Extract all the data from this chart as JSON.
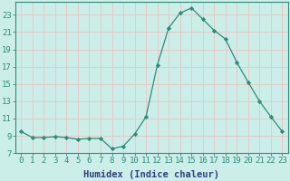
{
  "x": [
    0,
    1,
    2,
    3,
    4,
    5,
    6,
    7,
    8,
    9,
    10,
    11,
    12,
    13,
    14,
    15,
    16,
    17,
    18,
    19,
    20,
    21,
    22,
    23
  ],
  "y": [
    9.5,
    8.8,
    8.8,
    8.9,
    8.8,
    8.6,
    8.7,
    8.7,
    7.5,
    7.8,
    9.2,
    11.2,
    17.2,
    21.5,
    23.2,
    23.8,
    22.5,
    21.2,
    20.2,
    17.5,
    15.2,
    13.0,
    11.2,
    9.5
  ],
  "line_color": "#2e8b7a",
  "marker": "D",
  "marker_size": 2.2,
  "bg_color": "#cceee8",
  "grid_color": "#e8c8c8",
  "xlabel": "Humidex (Indice chaleur)",
  "xlabel_fontsize": 7.5,
  "tick_fontsize": 6.5,
  "ylim": [
    7,
    24.5
  ],
  "yticks": [
    7,
    9,
    11,
    13,
    15,
    17,
    19,
    21,
    23
  ],
  "xlim": [
    -0.5,
    23.5
  ],
  "xticks": [
    0,
    1,
    2,
    3,
    4,
    5,
    6,
    7,
    8,
    9,
    10,
    11,
    12,
    13,
    14,
    15,
    16,
    17,
    18,
    19,
    20,
    21,
    22,
    23
  ],
  "spine_color": "#2e8b7a",
  "tick_color": "#2e8b7a",
  "label_color": "#2e4080"
}
